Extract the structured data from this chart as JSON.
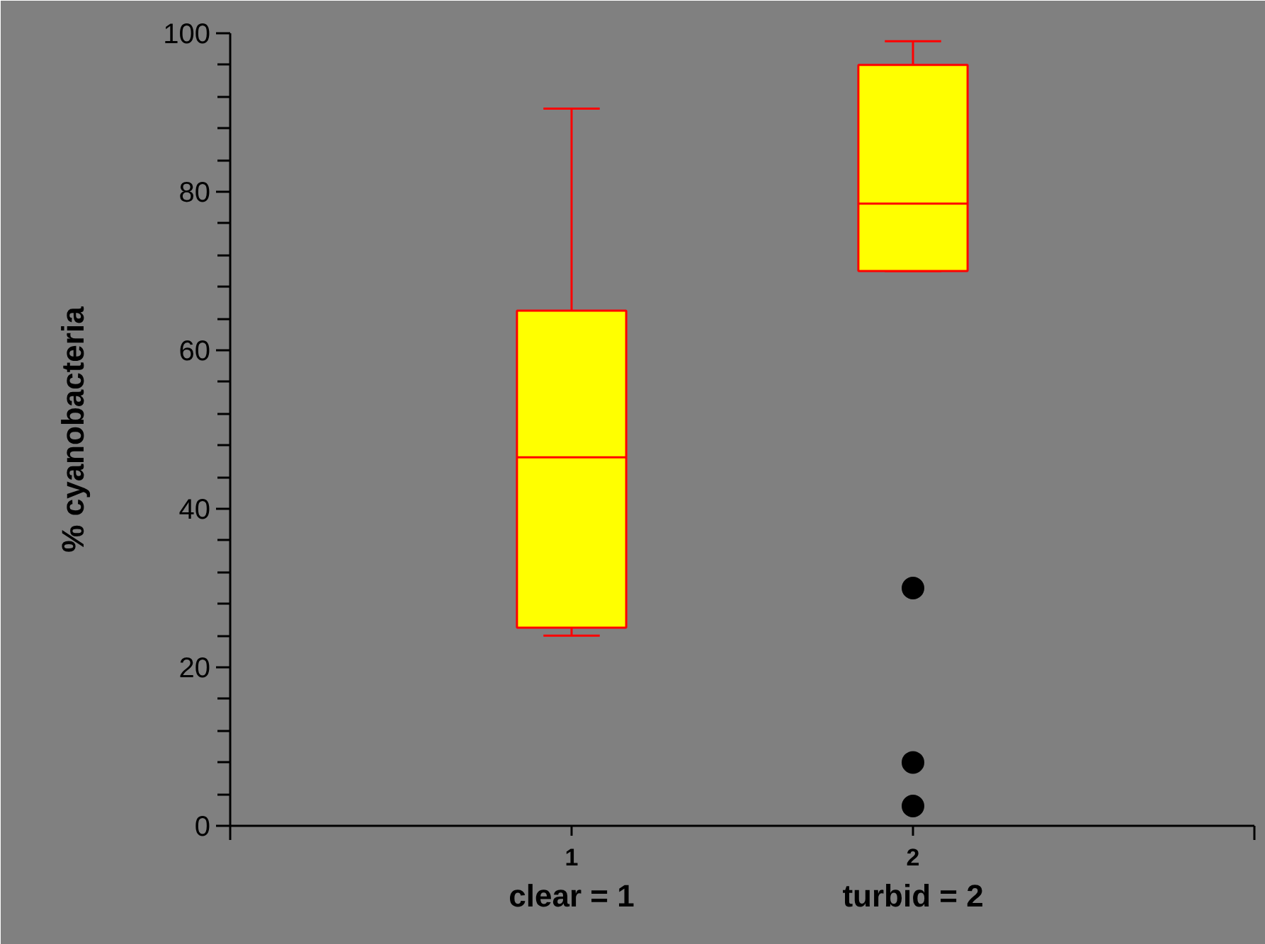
{
  "chart_data": {
    "type": "box",
    "ylabel": "% cyanobacteria",
    "categories": [
      "1",
      "2"
    ],
    "annotations": [
      "clear = 1",
      "turbid = 2"
    ],
    "series": [
      {
        "color": "#ffff00",
        "boxes": [
          {
            "low": 24,
            "q1": 25,
            "median": 46.5,
            "q3": 65,
            "high": 90.5
          },
          {
            "low": 70,
            "q1": 70,
            "median": 78.5,
            "q3": 96,
            "high": 99,
            "outliers": [
              30,
              8,
              2.5
            ]
          }
        ]
      }
    ],
    "ylim": [
      0,
      100
    ],
    "yticks": [
      0,
      {
        "value": 4,
        "label": null
      },
      {
        "value": 8,
        "label": null
      },
      {
        "value": 12,
        "label": null
      },
      {
        "value": 16,
        "label": null
      },
      20,
      {
        "value": 24,
        "label": null
      },
      {
        "value": 28,
        "label": null
      },
      {
        "value": 32,
        "label": null
      },
      {
        "value": 36,
        "label": null
      },
      40,
      {
        "value": 44,
        "label": null
      },
      {
        "value": 48,
        "label": null
      },
      {
        "value": 52,
        "label": null
      },
      {
        "value": 56,
        "label": null
      },
      60,
      {
        "value": 64,
        "label": null
      },
      {
        "value": 68,
        "label": null
      },
      {
        "value": 72,
        "label": null
      },
      {
        "value": 76,
        "label": null
      },
      80,
      {
        "value": 84,
        "label": null
      },
      {
        "value": 88,
        "label": null
      },
      {
        "value": 92,
        "label": null
      },
      {
        "value": 96,
        "label": null
      },
      100
    ]
  }
}
